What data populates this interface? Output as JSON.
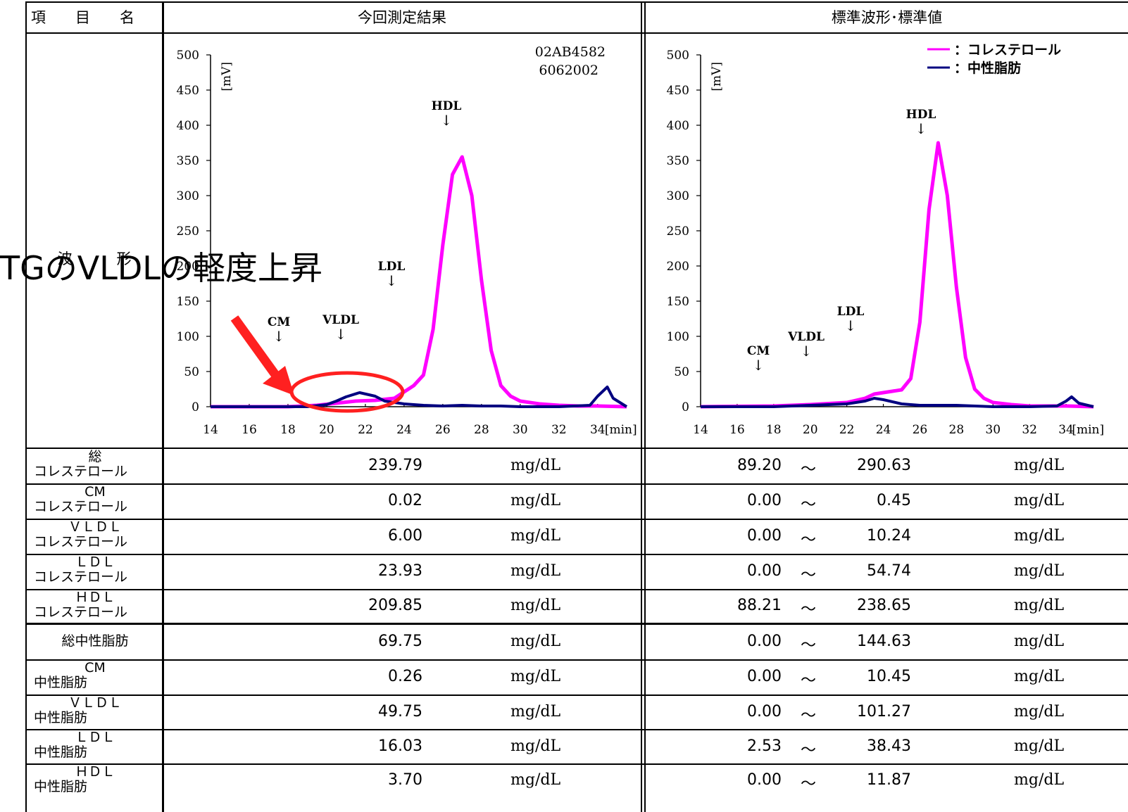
{
  "header": {
    "item_label": "項　　目　　名",
    "current_label": "今回測定結果",
    "standard_label": "標準波形･標準値"
  },
  "waveform_label": "波　　　形",
  "overlay_text": "TGのVLDLの軽度上昇",
  "chart_current": {
    "sample_id_1": "02AB4582",
    "sample_id_2": "6062002",
    "yunit": "[mV]",
    "xunit": "[min]",
    "yticks": [
      "500",
      "450",
      "400",
      "350",
      "300",
      "250",
      "200",
      "150",
      "100",
      "50",
      "0"
    ],
    "xticks": [
      "14",
      "16",
      "18",
      "20",
      "22",
      "24",
      "26",
      "28",
      "30",
      "32",
      "34"
    ],
    "peak_labels": [
      {
        "text": "CM"
      },
      {
        "text": "VLDL"
      },
      {
        "text": "LDL"
      },
      {
        "text": "HDL"
      }
    ]
  },
  "chart_standard": {
    "yunit": "[mV]",
    "xunit": "[min]",
    "yticks": [
      "500",
      "450",
      "400",
      "350",
      "300",
      "250",
      "200",
      "150",
      "100",
      "50",
      "0"
    ],
    "xticks": [
      "14",
      "16",
      "18",
      "20",
      "22",
      "24",
      "26",
      "28",
      "30",
      "32",
      "34"
    ],
    "legend": [
      {
        "label": "：コレステロール",
        "color": "#ff00ff"
      },
      {
        "label": "：中性脂肪",
        "color": "#000080"
      }
    ],
    "peak_labels": [
      {
        "text": "CM"
      },
      {
        "text": "VLDL"
      },
      {
        "text": "LDL"
      },
      {
        "text": "HDL"
      }
    ]
  },
  "chart_data": [
    {
      "type": "line",
      "title": "",
      "xlabel": "[min]",
      "ylabel": "[mV]",
      "xlim": [
        14,
        35.5
      ],
      "ylim": [
        0,
        500
      ],
      "grid": false,
      "series": [
        {
          "name": "",
          "color": "#ff00ff",
          "x": [
            14,
            18,
            19.5,
            20.5,
            21.5,
            22.5,
            23.5,
            24.5,
            25,
            25.5,
            26,
            26.5,
            27,
            27.5,
            28,
            28.5,
            29,
            29.5,
            30,
            31,
            32,
            33,
            34,
            35.5
          ],
          "y": [
            0,
            0,
            2,
            5,
            8,
            9,
            12,
            30,
            45,
            110,
            230,
            330,
            355,
            300,
            180,
            80,
            30,
            15,
            8,
            4,
            2,
            1,
            1,
            0
          ]
        },
        {
          "name": "",
          "color": "#000080",
          "x": [
            14,
            19,
            20,
            20.5,
            21,
            21.7,
            22.5,
            23,
            24,
            25,
            26,
            27,
            28,
            29,
            30,
            32,
            33.6,
            34,
            34.5,
            34.8,
            35.5
          ],
          "y": [
            0,
            0,
            3,
            8,
            14,
            20,
            15,
            8,
            4,
            2,
            1,
            2,
            1,
            1,
            0,
            0,
            2,
            15,
            28,
            12,
            0
          ]
        }
      ]
    },
    {
      "type": "line",
      "title": "",
      "xlabel": "[min]",
      "ylabel": "[mV]",
      "xlim": [
        14,
        35.5
      ],
      "ylim": [
        0,
        500
      ],
      "grid": false,
      "series": [
        {
          "name": "コレステロール",
          "color": "#ff00ff",
          "x": [
            14,
            18,
            20,
            22,
            23,
            23.5,
            24,
            24.5,
            25,
            25.5,
            26,
            26.5,
            27,
            27.5,
            28,
            28.5,
            29,
            29.5,
            30,
            31,
            32,
            33,
            34,
            35.5
          ],
          "y": [
            0,
            1,
            3,
            6,
            12,
            18,
            20,
            22,
            24,
            40,
            120,
            280,
            375,
            300,
            170,
            70,
            25,
            12,
            6,
            3,
            1,
            1,
            1,
            0
          ]
        },
        {
          "name": "中性脂肪",
          "color": "#000080",
          "x": [
            14,
            18,
            20,
            22,
            23,
            23.5,
            24,
            25,
            26,
            27,
            28,
            29,
            30,
            32,
            33.5,
            34,
            34.3,
            34.7,
            35.5
          ],
          "y": [
            0,
            0,
            2,
            4,
            8,
            12,
            10,
            4,
            2,
            2,
            2,
            1,
            0,
            0,
            1,
            8,
            14,
            5,
            0
          ]
        }
      ]
    }
  ],
  "rows": [
    {
      "label1": "総",
      "label2": "コレステロール",
      "value": "239.79",
      "unit": "mg/dL",
      "low": "89.20",
      "sep": "〜",
      "high": "290.63",
      "unit2": "mg/dL"
    },
    {
      "label1": "CM",
      "label2": "コレステロール",
      "value": "0.02",
      "unit": "mg/dL",
      "low": "0.00",
      "sep": "〜",
      "high": "0.45",
      "unit2": "mg/dL"
    },
    {
      "label1": "ＶＬＤＬ",
      "label2": "コレステロール",
      "value": "6.00",
      "unit": "mg/dL",
      "low": "0.00",
      "sep": "〜",
      "high": "10.24",
      "unit2": "mg/dL"
    },
    {
      "label1": "ＬＤＬ",
      "label2": "コレステロール",
      "value": "23.93",
      "unit": "mg/dL",
      "low": "0.00",
      "sep": "〜",
      "high": "54.74",
      "unit2": "mg/dL"
    },
    {
      "label1": "ＨＤＬ",
      "label2": "コレステロール",
      "value": "209.85",
      "unit": "mg/dL",
      "low": "88.21",
      "sep": "〜",
      "high": "238.65",
      "unit2": "mg/dL"
    },
    {
      "label1": "総中性脂肪",
      "label2": "",
      "value": "69.75",
      "unit": "mg/dL",
      "low": "0.00",
      "sep": "〜",
      "high": "144.63",
      "unit2": "mg/dL"
    },
    {
      "label1": "CM",
      "label2": "中性脂肪",
      "value": "0.26",
      "unit": "mg/dL",
      "low": "0.00",
      "sep": "〜",
      "high": "10.45",
      "unit2": "mg/dL"
    },
    {
      "label1": "ＶＬＤＬ",
      "label2": "中性脂肪",
      "value": "49.75",
      "unit": "mg/dL",
      "low": "0.00",
      "sep": "〜",
      "high": "101.27",
      "unit2": "mg/dL"
    },
    {
      "label1": "ＬＤＬ",
      "label2": "中性脂肪",
      "value": "16.03",
      "unit": "mg/dL",
      "low": "2.53",
      "sep": "〜",
      "high": "38.43",
      "unit2": "mg/dL"
    },
    {
      "label1": "ＨＤＬ",
      "label2": "中性脂肪",
      "value": "3.70",
      "unit": "mg/dL",
      "low": "0.00",
      "sep": "〜",
      "high": "11.87",
      "unit2": "mg/dL"
    }
  ],
  "colors": {
    "cholesterol": "#ff00ff",
    "triglyceride": "#000080",
    "annotation": "#ff2020"
  }
}
